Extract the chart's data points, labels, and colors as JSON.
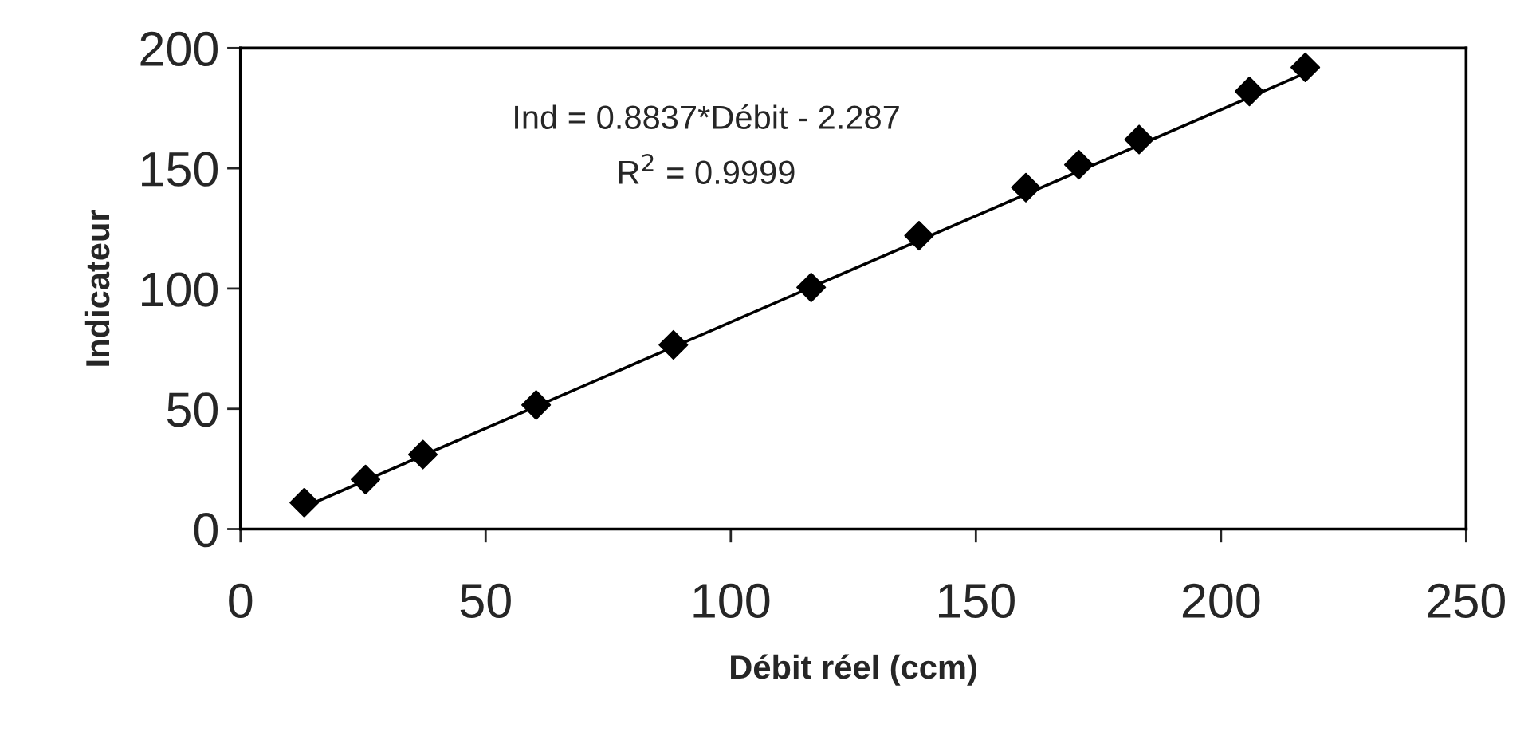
{
  "chart_data": {
    "type": "scatter",
    "xlabel": "Débit réel (ccm)",
    "ylabel": "Indicateur",
    "annotations": [
      "Ind = 0.8837*Débit - 2.287",
      "R$^{2}$ = 0.9999"
    ],
    "xlim": [
      0,
      250
    ],
    "xticks": [
      0,
      50,
      100,
      150,
      200,
      250
    ],
    "ylim": [
      0,
      200
    ],
    "yticks": [
      0,
      50,
      100,
      150,
      200
    ],
    "grid": false,
    "legend": false,
    "series": [
      {
        "color": "#000000",
        "marker": "diamond",
        "x": [
          13,
          25.5,
          37.2,
          60.3,
          88.3,
          116.4,
          138.4,
          160.2,
          171,
          183.3,
          205.8,
          217.2
        ],
        "values": [
          11,
          20.6,
          31,
          51.6,
          76.6,
          100.5,
          122,
          142,
          151.5,
          162,
          182,
          192
        ]
      },
      {
        "type": "line",
        "color": "#000000",
        "marker": "none",
        "line_style": "solid",
        "x": [
          13,
          217.2
        ],
        "values": [
          9.2,
          189.6
        ]
      }
    ]
  }
}
